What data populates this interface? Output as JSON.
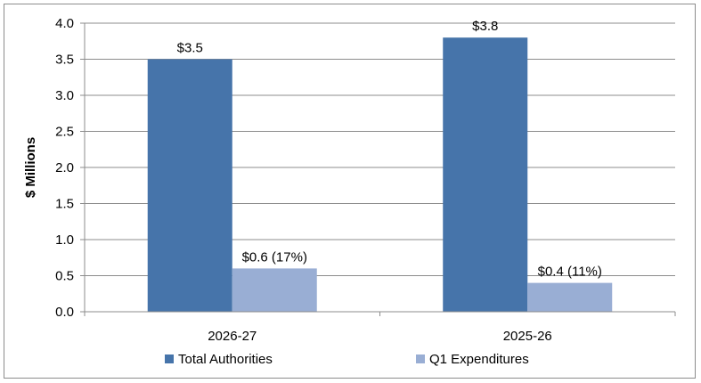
{
  "chart_data": {
    "type": "bar",
    "categories": [
      "2026-27",
      "2025-26"
    ],
    "series": [
      {
        "name": "Total Authorities",
        "values": [
          3.5,
          3.8
        ],
        "color": "#4674AA",
        "labels": [
          "$3.5",
          "$3.8"
        ]
      },
      {
        "name": "Q1 Expenditures",
        "values": [
          0.6,
          0.4
        ],
        "color": "#99AED4",
        "labels": [
          "$0.6 (17%)",
          "$0.4 (11%)"
        ]
      }
    ],
    "ylabel": "$ Millions",
    "ylim": [
      0,
      4.0
    ],
    "yticks": [
      "0.0",
      "0.5",
      "1.0",
      "1.5",
      "2.0",
      "2.5",
      "3.0",
      "3.5",
      "4.0"
    ],
    "grid": true,
    "legend_position": "bottom"
  }
}
